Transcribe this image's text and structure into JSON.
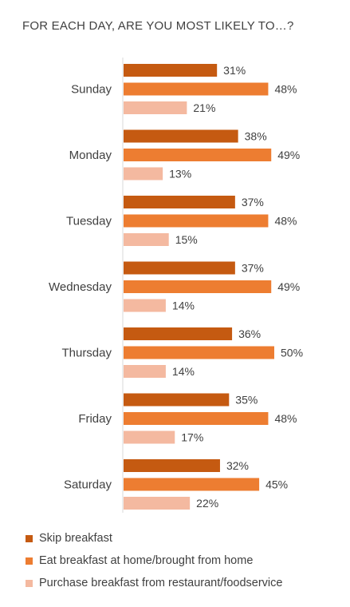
{
  "chart_data": {
    "type": "bar",
    "orientation": "horizontal",
    "title": "FOR EACH DAY, ARE YOU MOST LIKELY TO…?",
    "categories": [
      "Sunday",
      "Monday",
      "Tuesday",
      "Wednesday",
      "Thursday",
      "Friday",
      "Saturday"
    ],
    "series": [
      {
        "name": "Skip breakfast",
        "color": "#c55a11",
        "values": [
          31,
          38,
          37,
          37,
          36,
          35,
          32
        ]
      },
      {
        "name": "Eat breakfast at home/brought from home",
        "color": "#ed7d31",
        "values": [
          48,
          49,
          48,
          49,
          50,
          48,
          45
        ]
      },
      {
        "name": "Purchase breakfast from restaurant/foodservice",
        "color": "#f4b9a0",
        "values": [
          21,
          13,
          15,
          14,
          14,
          17,
          22
        ]
      }
    ],
    "value_suffix": "%",
    "data_labels": true,
    "grid": false,
    "legend_position": "bottom"
  }
}
